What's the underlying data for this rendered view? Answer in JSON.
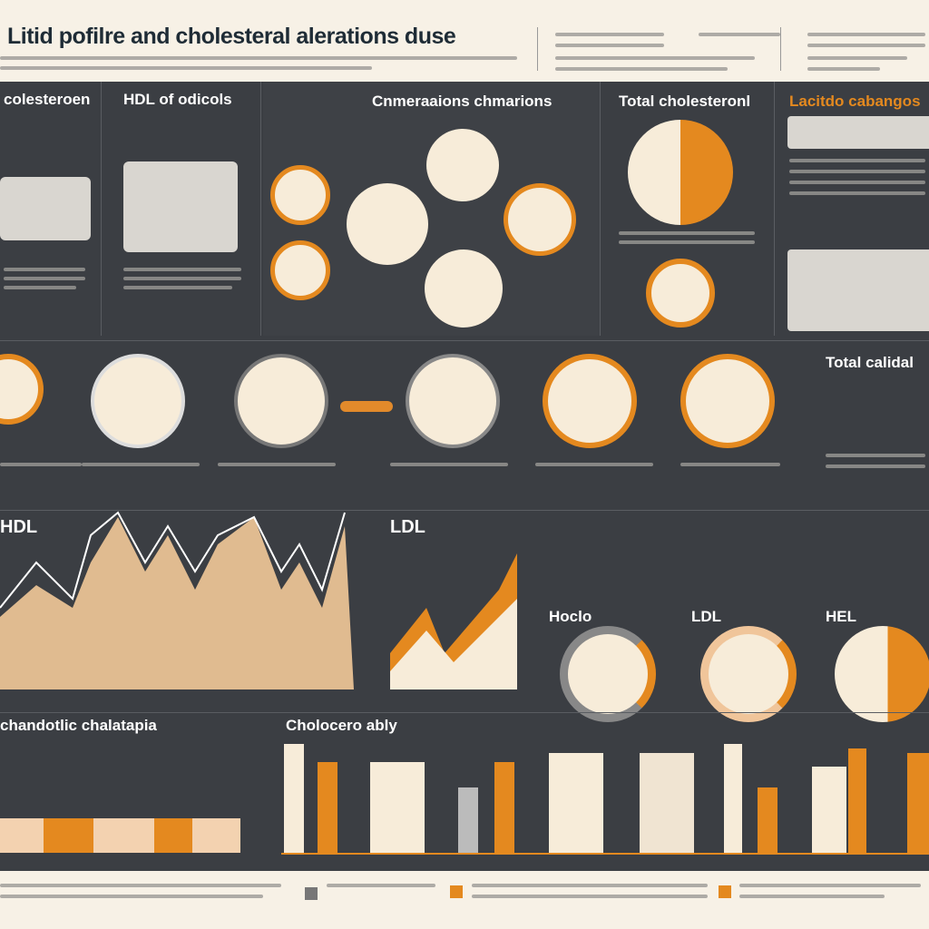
{
  "header": {
    "title": "Litid pofilre and cholesteral alerations duse"
  },
  "row1": {
    "panel1_title": "colesteroen",
    "panel2_title": "HDL of odicols",
    "panel3_title": "Cnmeraaions chmarions",
    "panel4_title": "Total cholesteronl",
    "panel5_title": "Lacitdo cabangos"
  },
  "row2": {
    "total_title": "Total calidal"
  },
  "row3": {
    "hdl_title": "HDL",
    "ldl_title": "LDL",
    "hoclo_title": "Hoclo",
    "ldl2_title": "LDL",
    "hel_title": "HEL"
  },
  "row4": {
    "left_title": "chandotlic chalatapia",
    "chart_title": "Cholocero ably"
  },
  "colors": {
    "accent": "#e4891f",
    "dark": "#3b3e43",
    "cream": "#f7ecd9"
  }
}
